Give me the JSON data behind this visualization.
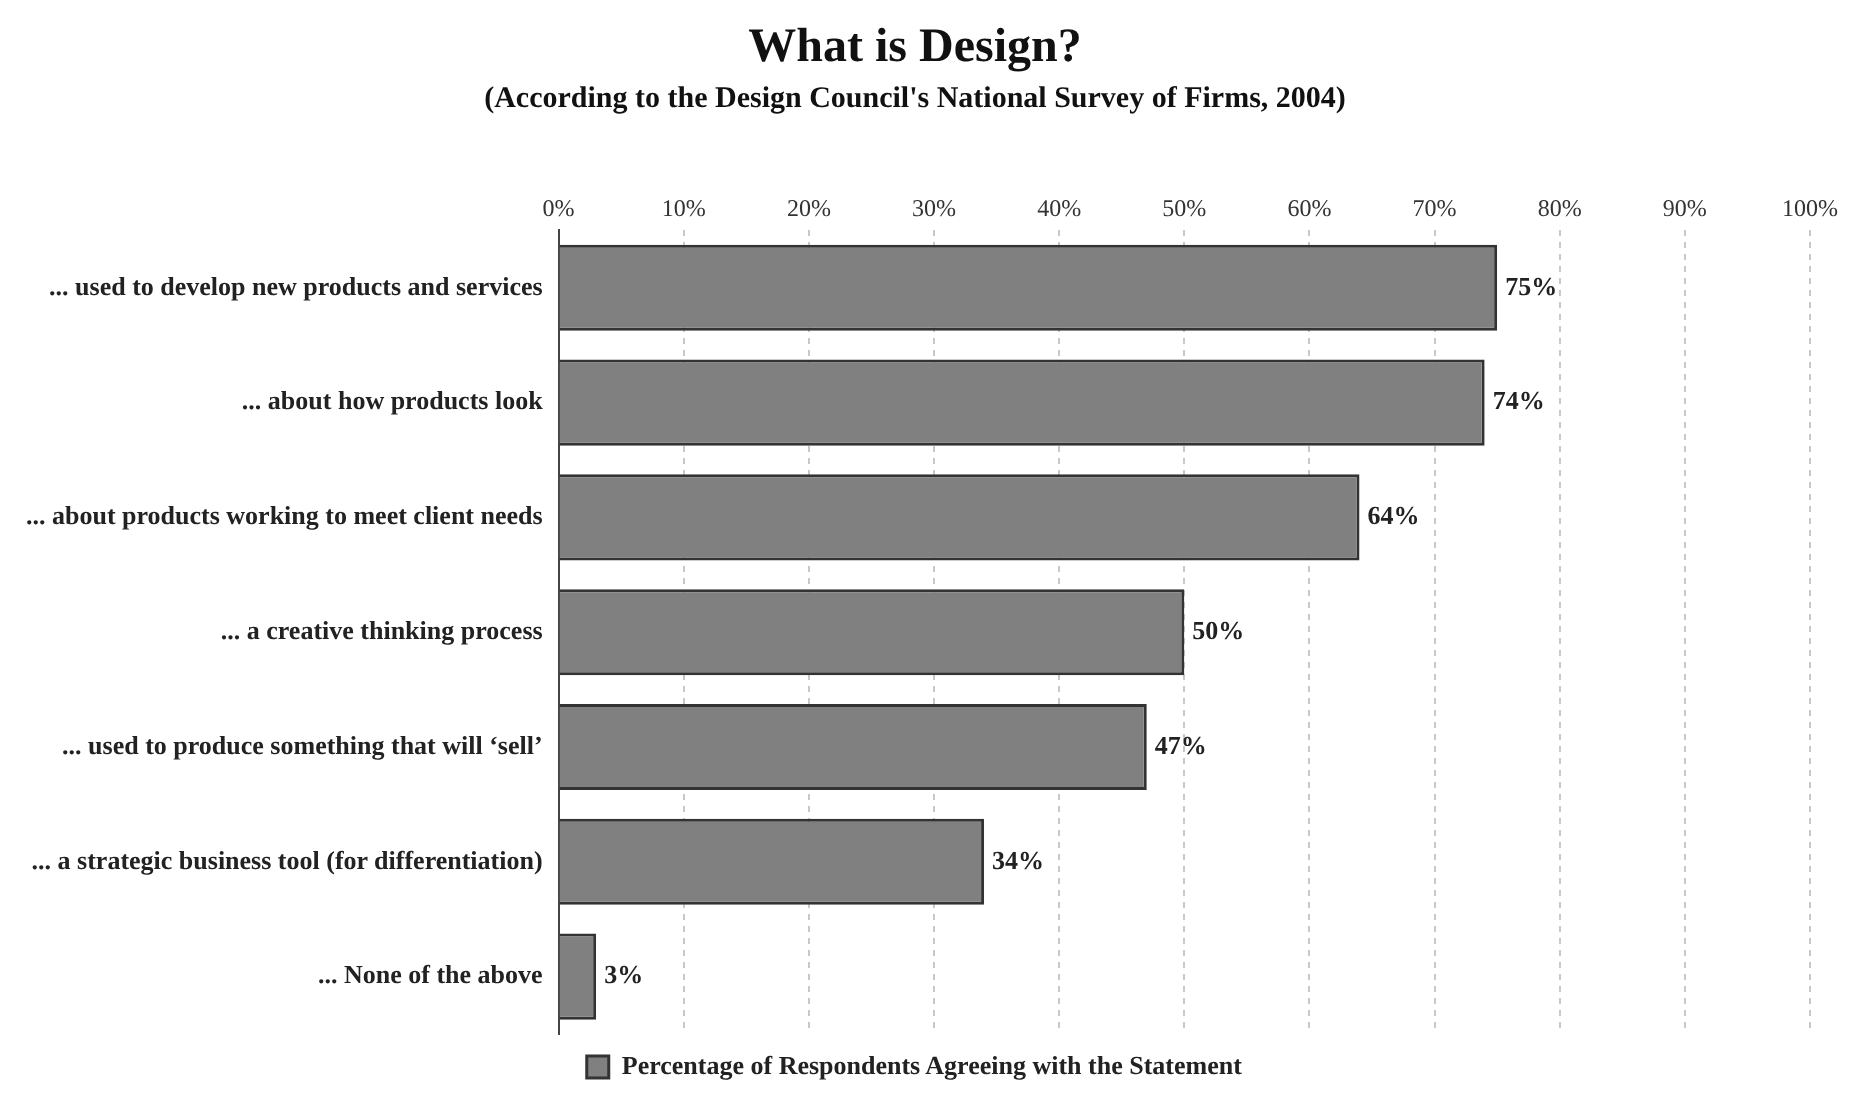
{
  "chart_data": {
    "type": "bar",
    "orientation": "horizontal",
    "title": "What is Design?",
    "subtitle": "(According to the Design Council's National Survey of Firms, 2004)",
    "categories": [
      "... used to develop new products and services",
      "... about how products look",
      "... about products working to meet client needs",
      "... a creative thinking process",
      "... used to produce something that will ‘sell’",
      "... a strategic business tool (for differentiation)",
      "... None of the above"
    ],
    "series": [
      {
        "name": "Percentage of Respondents Agreeing with the Statement",
        "color": "#808080",
        "values": [
          75,
          74,
          64,
          50,
          47,
          34,
          3
        ],
        "value_labels": [
          "75%",
          "74%",
          "64%",
          "50%",
          "47%",
          "34%",
          "3%"
        ]
      }
    ],
    "xlim": [
      0,
      100
    ],
    "xticks": [
      {
        "value": 0,
        "label": "0%"
      },
      {
        "value": 10,
        "label": "10%"
      },
      {
        "value": 20,
        "label": "20%"
      },
      {
        "value": 30,
        "label": "30%"
      },
      {
        "value": 40,
        "label": "40%"
      },
      {
        "value": 50,
        "label": "50%"
      },
      {
        "value": 60,
        "label": "60%"
      },
      {
        "value": 70,
        "label": "70%"
      },
      {
        "value": 80,
        "label": "80%"
      },
      {
        "value": 90,
        "label": "90%"
      },
      {
        "value": 100,
        "label": "100%"
      }
    ],
    "grid": "x",
    "legend": "bottom"
  }
}
